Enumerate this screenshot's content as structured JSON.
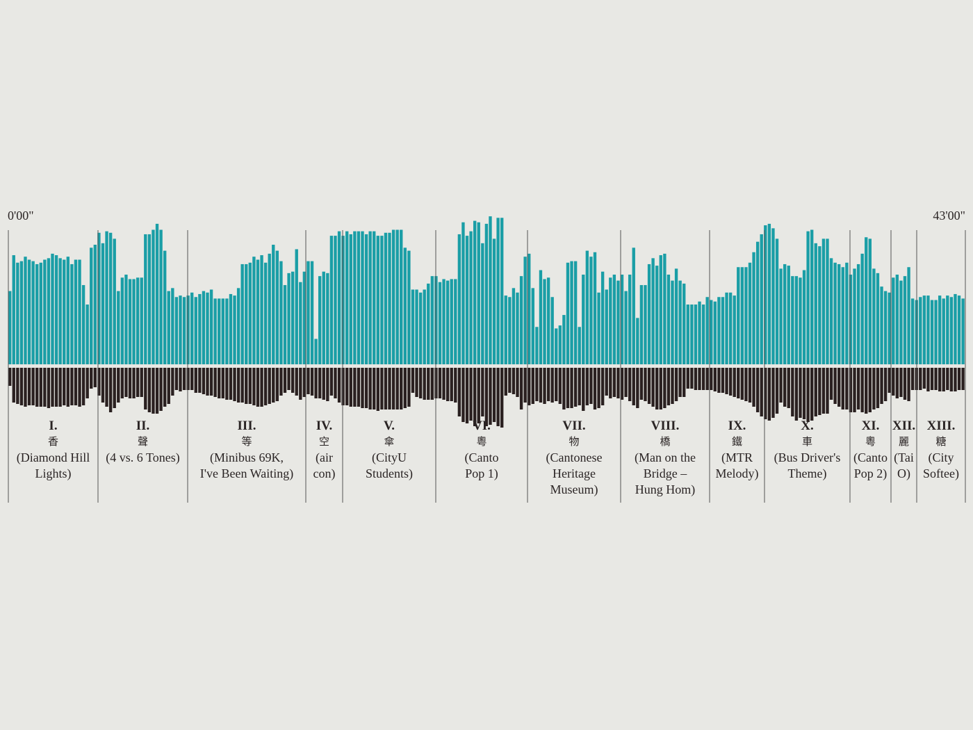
{
  "colors": {
    "background": "#e8e8e4",
    "upper_bars": "#1a9ea6",
    "lower_bars": "#2a2020",
    "divider": "#555555",
    "baseline": "#ffffff"
  },
  "time_start": "0'00\"",
  "time_end": "43'00\"",
  "chart_data": {
    "type": "bar",
    "series": [
      {
        "values": [
          49,
          73,
          68,
          69,
          72,
          70,
          69,
          67,
          68,
          70,
          71,
          74,
          73,
          71,
          70,
          72,
          67,
          70,
          70,
          53,
          40,
          78,
          80,
          88,
          81,
          89,
          88,
          84,
          49,
          58,
          60,
          57,
          57,
          58,
          58,
          87,
          87,
          90,
          94,
          90,
          76,
          49,
          51,
          45,
          46,
          45,
          46,
          48,
          45,
          47,
          49,
          48,
          50,
          44,
          44,
          44,
          44,
          47,
          46,
          51,
          67,
          67,
          68,
          72,
          70,
          73,
          68,
          74,
          80,
          76,
          69,
          53,
          61,
          62,
          77,
          55,
          62,
          69,
          69,
          17,
          59,
          62,
          61,
          86,
          86,
          89,
          86,
          89,
          87,
          89,
          89,
          89,
          87,
          89,
          89,
          86,
          86,
          88,
          88,
          90,
          90,
          90,
          78,
          76,
          50,
          50,
          48,
          50,
          54,
          59,
          59,
          55,
          57,
          56,
          57,
          57,
          87,
          95,
          86,
          89,
          96,
          95,
          81,
          94,
          99,
          84,
          98,
          98,
          46,
          45,
          51,
          48,
          59,
          72,
          74,
          51,
          25,
          63,
          57,
          58,
          45,
          24,
          26,
          33,
          68,
          69,
          69,
          25,
          60,
          76,
          72,
          75,
          48,
          62,
          50,
          58,
          60,
          56,
          60,
          49,
          60,
          78,
          31,
          53,
          53,
          67,
          71,
          66,
          73,
          74,
          60,
          56,
          64,
          56,
          54,
          40,
          40,
          40,
          42,
          40,
          45,
          43,
          42,
          45,
          45,
          48,
          48,
          46,
          65,
          65,
          65,
          68,
          75,
          82,
          87,
          93,
          94,
          91,
          84,
          64,
          67,
          66,
          59,
          59,
          58,
          63,
          89,
          90,
          81,
          79,
          84,
          84,
          71,
          68,
          67,
          65,
          68,
          60,
          64,
          67,
          74,
          85,
          84,
          64,
          61,
          52,
          49,
          48,
          58,
          60,
          56,
          59,
          65,
          44,
          43,
          45,
          46,
          46,
          43,
          43,
          46,
          44,
          46,
          45,
          47,
          46,
          44
        ]
      },
      {
        "values": [
          13,
          25,
          26,
          27,
          28,
          27,
          27,
          28,
          28,
          28,
          29,
          28,
          28,
          28,
          27,
          28,
          27,
          27,
          28,
          27,
          22,
          15,
          14,
          20,
          25,
          28,
          32,
          29,
          25,
          22,
          21,
          22,
          22,
          21,
          21,
          30,
          32,
          33,
          33,
          31,
          28,
          26,
          20,
          16,
          17,
          16,
          16,
          16,
          18,
          18,
          19,
          20,
          20,
          21,
          22,
          22,
          23,
          23,
          24,
          25,
          25,
          26,
          26,
          27,
          28,
          28,
          27,
          26,
          25,
          24,
          20,
          18,
          16,
          18,
          20,
          23,
          21,
          19,
          20,
          22,
          22,
          23,
          24,
          20,
          22,
          25,
          27,
          27,
          28,
          28,
          28,
          29,
          29,
          30,
          30,
          31,
          30,
          30,
          30,
          30,
          30,
          30,
          29,
          28,
          18,
          21,
          22,
          23,
          23,
          23,
          22,
          22,
          23,
          24,
          24,
          25,
          35,
          39,
          40,
          38,
          42,
          40,
          35,
          42,
          41,
          39,
          42,
          43,
          20,
          18,
          19,
          21,
          30,
          25,
          27,
          26,
          24,
          25,
          26,
          24,
          25,
          24,
          26,
          30,
          29,
          29,
          28,
          27,
          31,
          27,
          26,
          30,
          29,
          27,
          20,
          22,
          21,
          22,
          23,
          21,
          24,
          27,
          29,
          23,
          24,
          26,
          28,
          30,
          30,
          29,
          27,
          26,
          24,
          21,
          21,
          15,
          15,
          16,
          16,
          16,
          16,
          16,
          17,
          18,
          18,
          19,
          20,
          21,
          22,
          23,
          24,
          25,
          28,
          32,
          35,
          37,
          38,
          36,
          33,
          25,
          28,
          29,
          35,
          38,
          36,
          37,
          39,
          38,
          35,
          34,
          33,
          33,
          23,
          26,
          28,
          30,
          30,
          32,
          32,
          30,
          32,
          33,
          32,
          30,
          29,
          26,
          24,
          18,
          20,
          22,
          21,
          23,
          24,
          16,
          16,
          16,
          15,
          17,
          16,
          16,
          17,
          17,
          16,
          17,
          17,
          16,
          16
        ]
      }
    ],
    "sections": [
      {
        "numeral": "I.",
        "hanzi": "香",
        "title_lines": [
          "(Diamond Hill",
          "Lights)"
        ]
      },
      {
        "numeral": "II.",
        "hanzi": "聲",
        "title_lines": [
          "(4 vs. 6 Tones)"
        ]
      },
      {
        "numeral": "III.",
        "hanzi": "等",
        "title_lines": [
          "(Minibus 69K,",
          "I've Been Waiting)"
        ]
      },
      {
        "numeral": "IV.",
        "hanzi": "空",
        "title_lines": [
          "(air",
          "con)"
        ]
      },
      {
        "numeral": "V.",
        "hanzi": "傘",
        "title_lines": [
          "(CityU",
          "Students)"
        ]
      },
      {
        "numeral": "VI.",
        "hanzi": "粵",
        "title_lines": [
          "(Canto",
          "Pop 1)"
        ]
      },
      {
        "numeral": "VII.",
        "hanzi": "物",
        "title_lines": [
          "(Cantonese",
          "Heritage",
          "Museum)"
        ]
      },
      {
        "numeral": "VIII.",
        "hanzi": "橋",
        "title_lines": [
          "(Man on the",
          "Bridge –",
          "Hung Hom)"
        ]
      },
      {
        "numeral": "IX.",
        "hanzi": "鐵",
        "title_lines": [
          "(MTR",
          "Melody)"
        ]
      },
      {
        "numeral": "X.",
        "hanzi": "車",
        "title_lines": [
          "(Bus Driver's",
          "Theme)"
        ]
      },
      {
        "numeral": "XI.",
        "hanzi": "粵",
        "title_lines": [
          "(Canto",
          "Pop 2)"
        ]
      },
      {
        "numeral": "XII.",
        "hanzi": "麗",
        "title_lines": [
          "(Tai",
          "O)"
        ]
      },
      {
        "numeral": "XIII.",
        "hanzi": "糖",
        "title_lines": [
          "(City",
          "Softee)"
        ]
      }
    ]
  }
}
